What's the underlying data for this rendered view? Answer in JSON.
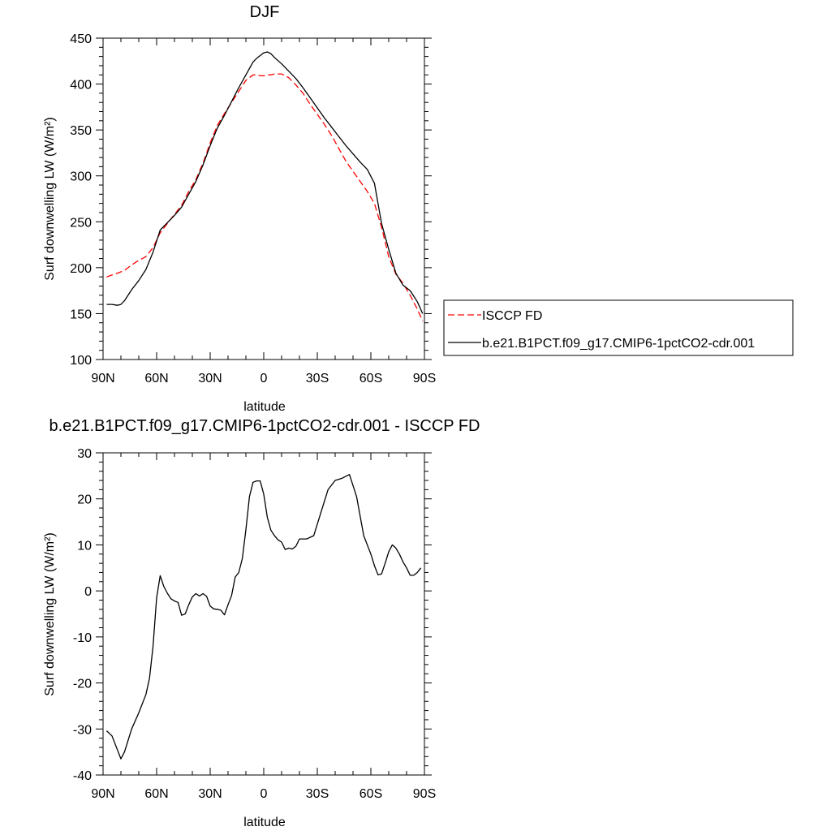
{
  "colors": {
    "isccp": "#ff0000",
    "model": "#000000",
    "axis": "#000000",
    "background": "#ffffff"
  },
  "chart_data": [
    {
      "type": "line",
      "title": "DJF",
      "xlabel": "latitude",
      "ylabel": "Surf downwelling LW (W/m²)",
      "xlim": [
        90,
        -90
      ],
      "ylim": [
        100,
        450
      ],
      "x_ticks": [
        {
          "value": 90,
          "label": "90N"
        },
        {
          "value": 60,
          "label": "60N"
        },
        {
          "value": 30,
          "label": "30N"
        },
        {
          "value": 0,
          "label": "0"
        },
        {
          "value": -30,
          "label": "30S"
        },
        {
          "value": -60,
          "label": "60S"
        },
        {
          "value": -90,
          "label": "90S"
        }
      ],
      "y_ticks": [
        100,
        150,
        200,
        250,
        300,
        350,
        400,
        450
      ],
      "legend": {
        "position": "right"
      },
      "series": [
        {
          "name": "ISCCP FD",
          "color": "#ff0000",
          "dash": "dashed",
          "x": [
            88,
            85,
            82,
            78,
            74,
            70,
            66,
            62,
            58,
            54,
            50,
            46,
            42,
            38,
            34,
            30,
            26,
            22,
            18,
            14,
            10,
            6,
            4,
            2,
            0,
            -2,
            -4,
            -6,
            -10,
            -14,
            -18,
            -22,
            -26,
            -30,
            -34,
            -38,
            -42,
            -46,
            -50,
            -54,
            -58,
            -62,
            -66,
            -70,
            -74,
            -78,
            -82,
            -86,
            -89
          ],
          "y": [
            190,
            192,
            194,
            197,
            203,
            208,
            212,
            222,
            238,
            248,
            258,
            268,
            283,
            296,
            314,
            336,
            355,
            368,
            380,
            392,
            404,
            410,
            410,
            409,
            409,
            410,
            410,
            411,
            411,
            407,
            399,
            390,
            378,
            367,
            356,
            344,
            330,
            316,
            305,
            294,
            283,
            270,
            244,
            212,
            193,
            183,
            170,
            155,
            142
          ]
        },
        {
          "name": "b.e21.B1PCT.f09_g17.CMIP6-1pctCO2-cdr.001",
          "color": "#000000",
          "dash": "solid",
          "x": [
            88,
            85,
            82,
            80,
            78,
            74,
            70,
            66,
            62,
            58,
            54,
            50,
            46,
            42,
            38,
            34,
            30,
            26,
            22,
            18,
            14,
            10,
            6,
            4,
            2,
            0,
            -2,
            -4,
            -6,
            -10,
            -14,
            -18,
            -22,
            -26,
            -30,
            -34,
            -38,
            -42,
            -46,
            -50,
            -54,
            -58,
            -62,
            -64,
            -66,
            -70,
            -74,
            -78,
            -82,
            -86,
            -89
          ],
          "y": [
            160,
            160,
            159,
            160,
            164,
            176,
            186,
            198,
            217,
            241,
            249,
            257,
            266,
            280,
            294,
            312,
            333,
            352,
            366,
            381,
            396,
            410,
            424,
            428,
            431,
            434,
            435,
            433,
            429,
            422,
            414,
            406,
            396,
            385,
            374,
            363,
            353,
            343,
            333,
            324,
            315,
            307,
            292,
            270,
            248,
            220,
            194,
            181,
            175,
            163,
            150
          ]
        }
      ]
    },
    {
      "type": "line",
      "title": "b.e21.B1PCT.f09_g17.CMIP6-1pctCO2-cdr.001 - ISCCP FD",
      "xlabel": "latitude",
      "ylabel": "Surf downwelling LW (W/m²)",
      "xlim": [
        90,
        -90
      ],
      "ylim": [
        -40,
        30
      ],
      "x_ticks": [
        {
          "value": 90,
          "label": "90N"
        },
        {
          "value": 60,
          "label": "60N"
        },
        {
          "value": 30,
          "label": "30N"
        },
        {
          "value": 0,
          "label": "0"
        },
        {
          "value": -30,
          "label": "30S"
        },
        {
          "value": -60,
          "label": "60S"
        },
        {
          "value": -90,
          "label": "90S"
        }
      ],
      "y_ticks": [
        -40,
        -30,
        -20,
        -10,
        0,
        10,
        20,
        30
      ],
      "series": [
        {
          "color": "#000000",
          "dash": "solid",
          "x": [
            88,
            85,
            82,
            80,
            78,
            74,
            70,
            66,
            64,
            62,
            60,
            58,
            56,
            54,
            52,
            50,
            48,
            46,
            44,
            42,
            40,
            38,
            36,
            34,
            32,
            30,
            28,
            26,
            24,
            22,
            20,
            18,
            16,
            14,
            12,
            10,
            8,
            6,
            4,
            2,
            0,
            -2,
            -4,
            -6,
            -8,
            -10,
            -12,
            -14,
            -16,
            -18,
            -20,
            -24,
            -28,
            -32,
            -36,
            -40,
            -44,
            -48,
            -52,
            -56,
            -60,
            -62,
            -64,
            -66,
            -68,
            -70,
            -72,
            -74,
            -76,
            -78,
            -80,
            -82,
            -84,
            -86,
            -88
          ],
          "y": [
            -30.4,
            -31.5,
            -34.5,
            -36.5,
            -35.0,
            -30.0,
            -26.5,
            -22.5,
            -19.0,
            -12.0,
            -1.5,
            3.3,
            1.0,
            -0.5,
            -1.7,
            -2.2,
            -2.5,
            -5.3,
            -5.0,
            -3.0,
            -1.3,
            -0.6,
            -1.1,
            -0.6,
            -1.2,
            -3.3,
            -3.9,
            -4.0,
            -4.2,
            -5.2,
            -3.0,
            -1.0,
            3.0,
            4.0,
            7.0,
            13.3,
            20.5,
            23.6,
            23.9,
            23.9,
            21.0,
            16.0,
            13.2,
            12.0,
            11.1,
            10.6,
            9.0,
            9.3,
            9.1,
            9.7,
            11.3,
            11.3,
            12.0,
            17.0,
            22.0,
            24.0,
            24.5,
            25.3,
            20.5,
            12.0,
            8.0,
            5.5,
            3.5,
            3.7,
            6.0,
            8.5,
            10.0,
            9.3,
            8.0,
            6.3,
            5.0,
            3.4,
            3.4,
            4.0,
            5.0
          ]
        }
      ]
    }
  ]
}
